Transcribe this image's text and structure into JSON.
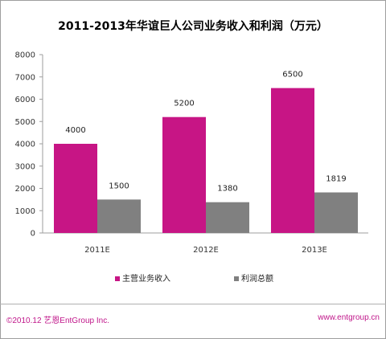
{
  "chart_data": {
    "type": "bar",
    "title": "2011-2013年华谊巨人公司业务收入和利润（万元）",
    "categories": [
      "2011E",
      "2012E",
      "2013E"
    ],
    "series": [
      {
        "name": "主营业务收入",
        "values": [
          4000,
          5200,
          6500
        ],
        "labels": [
          "4000",
          "5200",
          "6500"
        ],
        "color": "#c71585"
      },
      {
        "name": "利润总额",
        "values": [
          1500,
          1380,
          1819
        ],
        "labels": [
          "1500",
          "1380",
          "1819"
        ],
        "color": "#808080"
      }
    ],
    "yticks": [
      "0",
      "1000",
      "2000",
      "3000",
      "4000",
      "5000",
      "6000",
      "7000",
      "8000"
    ],
    "ylim": [
      0,
      8000
    ],
    "grid": false,
    "legend": "bottom"
  },
  "footer": {
    "left": "©2010.12  艺恩EntGroup Inc.",
    "right": "www.entgroup.cn"
  },
  "colors": {
    "accent": "#c71585",
    "secondary": "#808080",
    "footer_text": "#c0168a"
  }
}
